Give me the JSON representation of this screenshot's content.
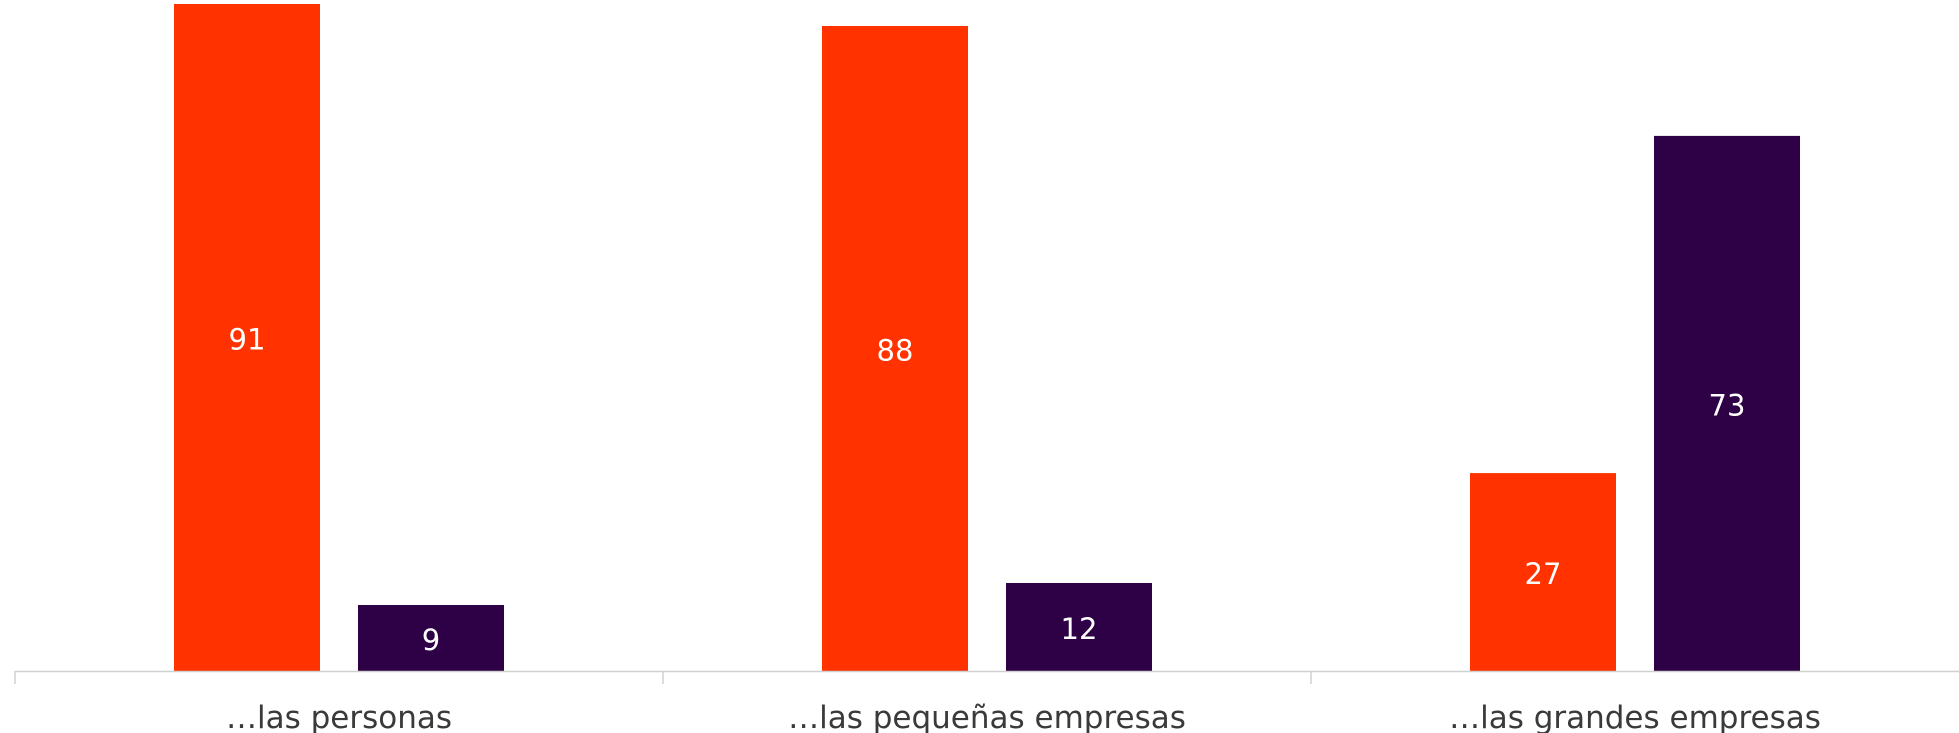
{
  "chart_data": {
    "type": "bar",
    "categories": [
      "…las personas",
      "…las pequeñas empresas",
      "…las grandes empresas"
    ],
    "series": [
      {
        "values": [
          91,
          88,
          27
        ],
        "color": "#ff3200"
      },
      {
        "values": [
          9,
          12,
          73
        ],
        "color": "#2e0046"
      }
    ],
    "ylim": [
      0,
      100
    ],
    "grid": false,
    "legend": "none"
  }
}
